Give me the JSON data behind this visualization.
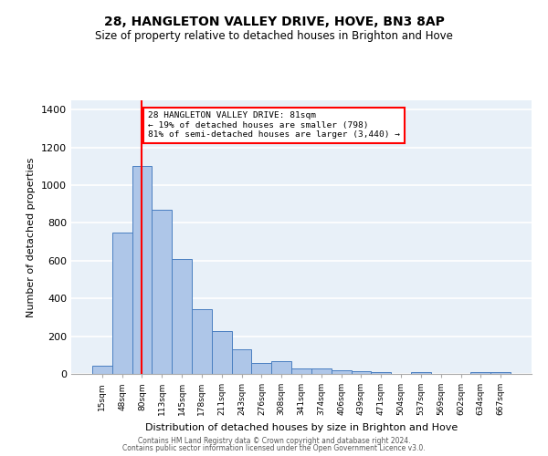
{
  "title": "28, HANGLETON VALLEY DRIVE, HOVE, BN3 8AP",
  "subtitle": "Size of property relative to detached houses in Brighton and Hove",
  "xlabel": "Distribution of detached houses by size in Brighton and Hove",
  "ylabel": "Number of detached properties",
  "categories": [
    "15sqm",
    "48sqm",
    "80sqm",
    "113sqm",
    "145sqm",
    "178sqm",
    "211sqm",
    "243sqm",
    "276sqm",
    "308sqm",
    "341sqm",
    "374sqm",
    "406sqm",
    "439sqm",
    "471sqm",
    "504sqm",
    "537sqm",
    "569sqm",
    "602sqm",
    "634sqm",
    "667sqm"
  ],
  "values": [
    45,
    750,
    1100,
    870,
    610,
    345,
    225,
    130,
    60,
    70,
    30,
    30,
    20,
    15,
    10,
    0,
    10,
    0,
    0,
    10,
    10
  ],
  "bar_color": "#aec6e8",
  "bar_edge_color": "#4a7fc1",
  "bg_color": "#e8f0f8",
  "grid_color": "#ffffff",
  "annotation_line1": "28 HANGLETON VALLEY DRIVE: 81sqm",
  "annotation_line2": "← 19% of detached houses are smaller (798)",
  "annotation_line3": "81% of semi-detached houses are larger (3,440) →",
  "annotation_box_color": "red",
  "property_line_color": "red",
  "property_line_index": 2,
  "ylim": [
    0,
    1450
  ],
  "yticks": [
    0,
    200,
    400,
    600,
    800,
    1000,
    1200,
    1400
  ],
  "footer1": "Contains HM Land Registry data © Crown copyright and database right 2024.",
  "footer2": "Contains public sector information licensed under the Open Government Licence v3.0."
}
